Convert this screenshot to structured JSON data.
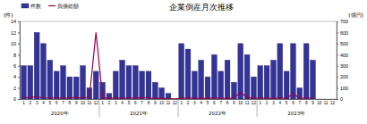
{
  "chart_data": {
    "type": "bar",
    "title": "企業倒産月次推移",
    "y_label": "(件)",
    "y2_label": "(億円)",
    "annotations": [
      "2020年",
      "2021年",
      "2022年",
      "2023年"
    ],
    "categories": [
      "1",
      "2",
      "3",
      "4",
      "5",
      "6",
      "7",
      "8",
      "9",
      "10",
      "11",
      "12",
      "1",
      "2",
      "3",
      "4",
      "5",
      "6",
      "7",
      "8",
      "9",
      "10",
      "11",
      "12",
      "1",
      "2",
      "3",
      "4",
      "5",
      "6",
      "7",
      "8",
      "9",
      "10",
      "11",
      "12",
      "1",
      "2",
      "3",
      "4",
      "5",
      "6",
      "7",
      "8",
      "9",
      "10",
      "11",
      "12"
    ],
    "series": [
      {
        "name": "件数",
        "type": "bar",
        "color": "#333399",
        "values": [
          6,
          6,
          12,
          10,
          7,
          5,
          6,
          4,
          4,
          6,
          2,
          5,
          3,
          1,
          5,
          7,
          6,
          6,
          5,
          5,
          3,
          2,
          1,
          0,
          10,
          9,
          5,
          7,
          4,
          8,
          5,
          7,
          3,
          10,
          8,
          4,
          6,
          6,
          7,
          10,
          5,
          10,
          2,
          10,
          7,
          null,
          null,
          null
        ]
      },
      {
        "name": "負債総額",
        "type": "line",
        "color": "#99004c",
        "axis": "y2",
        "values": [
          10,
          15,
          20,
          10,
          8,
          12,
          5,
          10,
          15,
          8,
          20,
          600,
          15,
          5,
          10,
          8,
          10,
          5,
          15,
          10,
          5,
          5,
          3,
          2,
          5,
          10,
          8,
          5,
          5,
          10,
          8,
          5,
          10,
          60,
          15,
          5,
          10,
          8,
          5,
          10,
          5,
          50,
          5,
          8,
          10,
          null,
          null,
          null
        ]
      }
    ],
    "ylim": [
      0,
      14
    ],
    "yticks": [
      0,
      2,
      4,
      6,
      8,
      10,
      12,
      14
    ],
    "y2lim": [
      0,
      700
    ],
    "y2ticks": [
      0,
      100,
      200,
      300,
      400,
      500,
      600,
      700
    ],
    "legend": "upper left",
    "grid": false
  }
}
